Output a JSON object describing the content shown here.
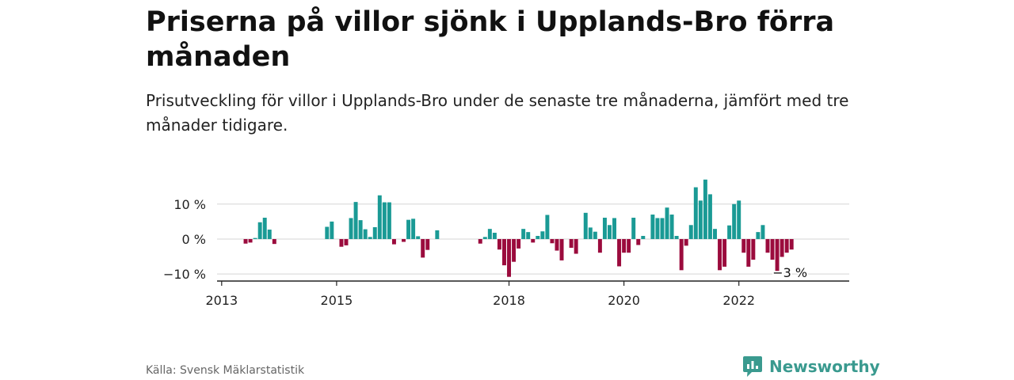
{
  "title": "Priserna på villor sjönk i Upplands-Bro förra månaden",
  "subtitle": "Prisutveckling för villor i Upplands-Bro under de senaste tre månaderna, jämfört med tre månader tidigare.",
  "source": "Källa: Svensk Mäklarstatistik",
  "brand": {
    "name": "Newsworthy",
    "icon": "newsworthy-logo-icon"
  },
  "colors": {
    "positive": "#1a9a95",
    "negative": "#9b0b3d",
    "axis": "#222222",
    "grid": "#dddddd",
    "brand": "#3a9a8f"
  },
  "chart_data": {
    "type": "bar",
    "title": "Priserna på villor sjönk i Upplands-Bro förra månaden",
    "subtitle": "Prisutveckling för villor i Upplands-Bro under de senaste tre månaderna, jämfört med tre månader tidigare.",
    "xlabel": "",
    "ylabel": "",
    "y_unit": "%",
    "ylim": [
      -12,
      19
    ],
    "yticks": [
      {
        "value": 10,
        "label": "10 %"
      },
      {
        "value": 0,
        "label": "0 %"
      },
      {
        "value": -10,
        "label": "−10 %"
      }
    ],
    "xticks": [
      {
        "value": 2013,
        "label": "2013"
      },
      {
        "value": 2015,
        "label": "2015"
      },
      {
        "value": 2018,
        "label": "2018"
      },
      {
        "value": 2020,
        "label": "2020"
      },
      {
        "value": 2022,
        "label": "2022"
      }
    ],
    "xlim": [
      2012.92,
      2023.92
    ],
    "grid": true,
    "bars": [
      {
        "x": "2013-06",
        "v": -1.3
      },
      {
        "x": "2013-07",
        "v": -1.0
      },
      {
        "x": "2013-08",
        "v": 0.3
      },
      {
        "x": "2013-09",
        "v": 4.8
      },
      {
        "x": "2013-10",
        "v": 6.1
      },
      {
        "x": "2013-11",
        "v": 2.7
      },
      {
        "x": "2013-12",
        "v": -1.4
      },
      {
        "x": "2014-11",
        "v": 3.5
      },
      {
        "x": "2014-12",
        "v": 5.0
      },
      {
        "x": "2015-02",
        "v": -2.2
      },
      {
        "x": "2015-03",
        "v": -1.8
      },
      {
        "x": "2015-04",
        "v": 6.0
      },
      {
        "x": "2015-05",
        "v": 10.6
      },
      {
        "x": "2015-06",
        "v": 5.4
      },
      {
        "x": "2015-07",
        "v": 2.8
      },
      {
        "x": "2015-08",
        "v": 0.6
      },
      {
        "x": "2015-09",
        "v": 3.4
      },
      {
        "x": "2015-10",
        "v": 12.5
      },
      {
        "x": "2015-11",
        "v": 10.5
      },
      {
        "x": "2015-12",
        "v": 10.5
      },
      {
        "x": "2016-01",
        "v": -1.5
      },
      {
        "x": "2016-03",
        "v": -0.8
      },
      {
        "x": "2016-04",
        "v": 5.5
      },
      {
        "x": "2016-05",
        "v": 5.8
      },
      {
        "x": "2016-06",
        "v": 0.8
      },
      {
        "x": "2016-07",
        "v": -5.3
      },
      {
        "x": "2016-08",
        "v": -3.1
      },
      {
        "x": "2016-10",
        "v": 2.5
      },
      {
        "x": "2017-07",
        "v": -1.3
      },
      {
        "x": "2017-08",
        "v": 0.6
      },
      {
        "x": "2017-09",
        "v": 2.9
      },
      {
        "x": "2017-10",
        "v": 1.8
      },
      {
        "x": "2017-11",
        "v": -3.0
      },
      {
        "x": "2017-12",
        "v": -7.5
      },
      {
        "x": "2018-01",
        "v": -10.8
      },
      {
        "x": "2018-02",
        "v": -6.5
      },
      {
        "x": "2018-03",
        "v": -2.7
      },
      {
        "x": "2018-04",
        "v": 2.9
      },
      {
        "x": "2018-05",
        "v": 2.0
      },
      {
        "x": "2018-06",
        "v": -1.0
      },
      {
        "x": "2018-07",
        "v": 0.9
      },
      {
        "x": "2018-08",
        "v": 2.2
      },
      {
        "x": "2018-09",
        "v": 6.9
      },
      {
        "x": "2018-10",
        "v": -1.2
      },
      {
        "x": "2018-11",
        "v": -3.3
      },
      {
        "x": "2018-12",
        "v": -6.1
      },
      {
        "x": "2019-02",
        "v": -2.5
      },
      {
        "x": "2019-03",
        "v": -4.2
      },
      {
        "x": "2019-05",
        "v": 7.5
      },
      {
        "x": "2019-06",
        "v": 3.3
      },
      {
        "x": "2019-07",
        "v": 2.1
      },
      {
        "x": "2019-08",
        "v": -3.9
      },
      {
        "x": "2019-09",
        "v": 6.1
      },
      {
        "x": "2019-10",
        "v": 4.0
      },
      {
        "x": "2019-11",
        "v": 6.0
      },
      {
        "x": "2019-12",
        "v": -7.8
      },
      {
        "x": "2020-01",
        "v": -3.9
      },
      {
        "x": "2020-02",
        "v": -3.9
      },
      {
        "x": "2020-03",
        "v": 6.1
      },
      {
        "x": "2020-04",
        "v": -1.7
      },
      {
        "x": "2020-05",
        "v": 0.9
      },
      {
        "x": "2020-07",
        "v": 7.0
      },
      {
        "x": "2020-08",
        "v": 6.0
      },
      {
        "x": "2020-09",
        "v": 6.0
      },
      {
        "x": "2020-10",
        "v": 9.0
      },
      {
        "x": "2020-11",
        "v": 7.0
      },
      {
        "x": "2020-12",
        "v": 0.9
      },
      {
        "x": "2021-01",
        "v": -8.9
      },
      {
        "x": "2021-02",
        "v": -1.9
      },
      {
        "x": "2021-03",
        "v": 4.0
      },
      {
        "x": "2021-04",
        "v": 14.8
      },
      {
        "x": "2021-05",
        "v": 11.0
      },
      {
        "x": "2021-06",
        "v": 17.0
      },
      {
        "x": "2021-07",
        "v": 12.8
      },
      {
        "x": "2021-08",
        "v": 2.9
      },
      {
        "x": "2021-09",
        "v": -8.9
      },
      {
        "x": "2021-10",
        "v": -7.9
      },
      {
        "x": "2021-11",
        "v": 3.9
      },
      {
        "x": "2021-12",
        "v": 10.0
      },
      {
        "x": "2022-01",
        "v": 11.0
      },
      {
        "x": "2022-02",
        "v": -3.9
      },
      {
        "x": "2022-03",
        "v": -7.9
      },
      {
        "x": "2022-04",
        "v": -5.9
      },
      {
        "x": "2022-05",
        "v": 2.0
      },
      {
        "x": "2022-06",
        "v": 4.0
      },
      {
        "x": "2022-07",
        "v": -3.9
      },
      {
        "x": "2022-08",
        "v": -5.9
      },
      {
        "x": "2022-09",
        "v": -9.9
      },
      {
        "x": "2022-10",
        "v": -5.1
      },
      {
        "x": "2022-11",
        "v": -3.9
      },
      {
        "x": "2022-12",
        "v": -3.0
      }
    ],
    "annotation": {
      "text": "−3 %",
      "x": "2022-12",
      "v": -3.0
    }
  }
}
